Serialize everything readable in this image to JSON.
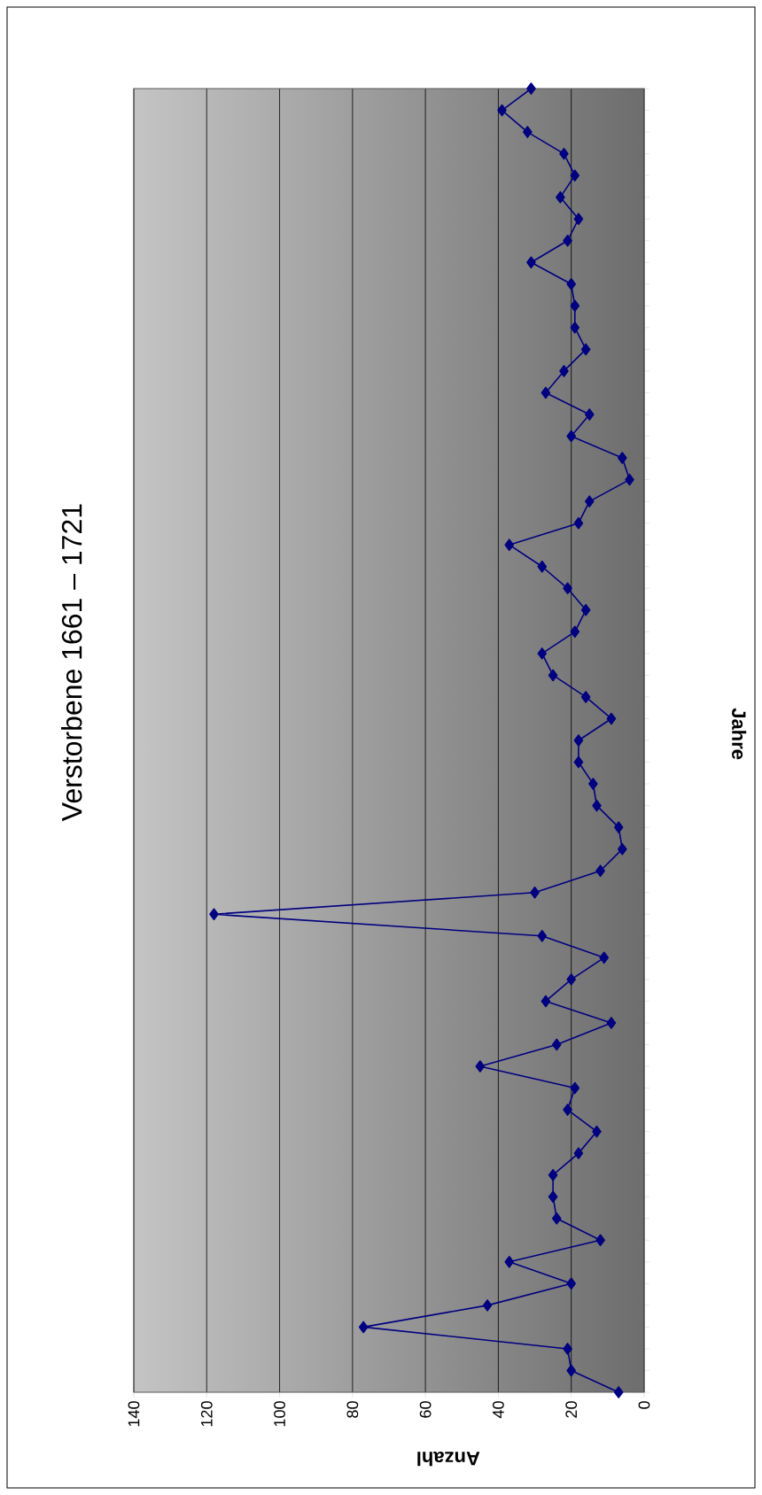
{
  "chart_data": {
    "type": "line",
    "orientation": "horizontal",
    "title": "Verstorbene 1661 – 1721",
    "xlabel": "Anzahl",
    "ylabel": "Jahre",
    "categories": [
      null,
      null,
      null,
      null,
      null,
      null,
      null,
      null,
      null,
      null,
      null,
      null,
      null,
      null,
      null,
      null,
      null,
      null,
      null,
      null,
      null,
      null,
      null,
      null,
      null,
      null,
      null,
      null,
      null,
      null,
      null,
      null,
      null,
      null,
      null,
      null,
      null,
      null,
      null,
      null,
      null,
      null,
      null,
      null,
      null,
      null,
      null,
      null,
      null,
      null,
      null,
      null,
      null,
      null,
      null,
      null,
      null,
      null,
      null,
      null,
      null
    ],
    "values": [
      31,
      39,
      32,
      22,
      19,
      23,
      18,
      21,
      31,
      20,
      19,
      19,
      16,
      22,
      27,
      15,
      20,
      6,
      4,
      15,
      18,
      37,
      28,
      21,
      16,
      19,
      28,
      25,
      16,
      9,
      18,
      18,
      14,
      13,
      7,
      6,
      12,
      30,
      118,
      28,
      11,
      20,
      27,
      9,
      24,
      45,
      19,
      21,
      13,
      18,
      25,
      25,
      24,
      12,
      37,
      20,
      43,
      77,
      21,
      20,
      7
    ],
    "color": "#000080",
    "marker": "diamond",
    "xlim": [
      140,
      0
    ],
    "xticks": [
      0,
      20,
      40,
      60,
      80,
      100,
      120,
      140
    ],
    "grid": "x"
  }
}
